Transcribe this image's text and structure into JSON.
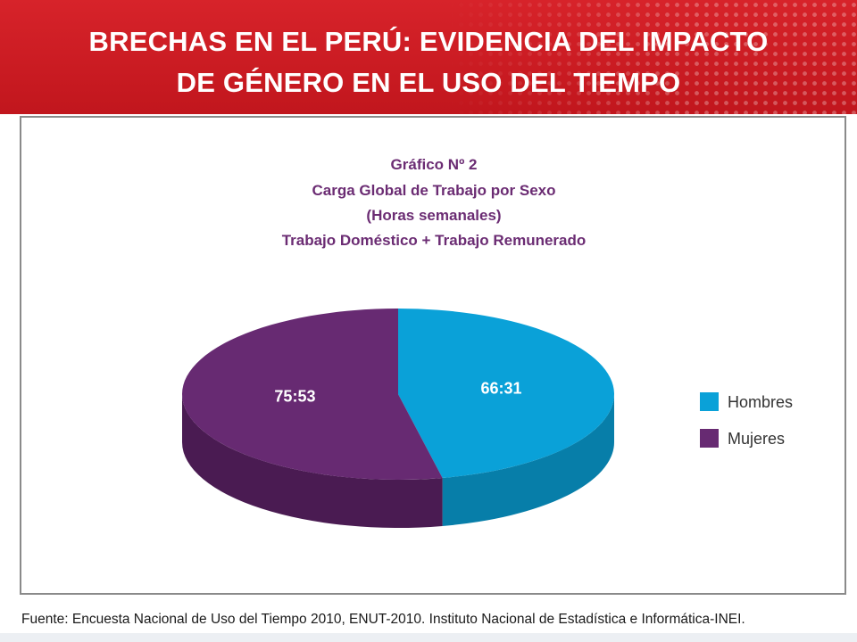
{
  "slide": {
    "title_line1": "BRECHAS EN EL PERÚ: EVIDENCIA DEL IMPACTO",
    "title_line2": "DE GÉNERO EN EL USO DEL TIEMPO",
    "source": "Fuente: Encuesta Nacional de Uso del Tiempo 2010, ENUT-2010. Instituto Nacional de Estadística e Informática-INEI."
  },
  "chart_data": {
    "type": "pie",
    "title": "Gráfico Nº 2",
    "subtitle_lines": [
      "Carga Global de Trabajo por Sexo",
      "(Horas semanales)",
      "Trabajo Doméstico + Trabajo Remunerado"
    ],
    "categories": [
      "Hombres",
      "Mujeres"
    ],
    "values": [
      66.52,
      75.88
    ],
    "labels": [
      "66:31",
      "75:53"
    ],
    "unit": "horas semanales",
    "colors": {
      "Hombres": {
        "top": "#0aa1d8",
        "side": "#077ea9"
      },
      "Mujeres": {
        "top": "#672a72",
        "side": "#4a1b52"
      }
    },
    "title_color": "#6b2c73",
    "style": "3d",
    "legend_position": "right"
  }
}
